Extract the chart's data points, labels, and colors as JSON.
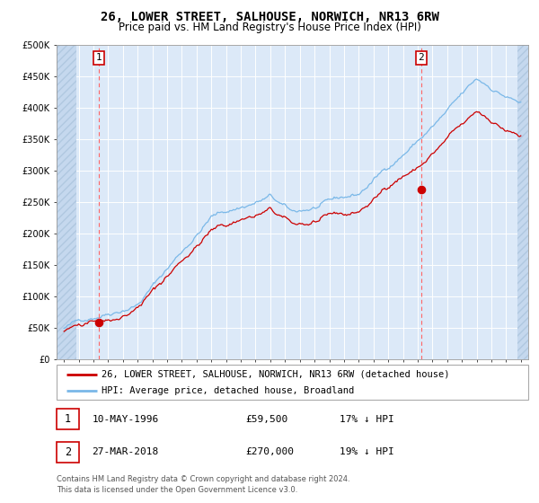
{
  "title": "26, LOWER STREET, SALHOUSE, NORWICH, NR13 6RW",
  "subtitle": "Price paid vs. HM Land Registry's House Price Index (HPI)",
  "ylim": [
    0,
    500000
  ],
  "yticks": [
    0,
    50000,
    100000,
    150000,
    200000,
    250000,
    300000,
    350000,
    400000,
    450000,
    500000
  ],
  "ytick_labels": [
    "£0",
    "£50K",
    "£100K",
    "£150K",
    "£200K",
    "£250K",
    "£300K",
    "£350K",
    "£400K",
    "£450K",
    "£500K"
  ],
  "xlim_start": 1993.5,
  "xlim_end": 2025.5,
  "background_color": "#ffffff",
  "plot_bg_color": "#dce9f8",
  "grid_color": "#ffffff",
  "hpi_color": "#7ab8e8",
  "price_color": "#cc0000",
  "vline_color": "#ff6666",
  "point1_x": 1996.36,
  "point1_y": 59500,
  "point2_x": 2018.24,
  "point2_y": 270000,
  "point_color": "#cc0000",
  "legend_label1": "26, LOWER STREET, SALHOUSE, NORWICH, NR13 6RW (detached house)",
  "legend_label2": "HPI: Average price, detached house, Broadland",
  "annot1_label": "1",
  "annot2_label": "2",
  "annot1_date": "10-MAY-1996",
  "annot1_price": "£59,500",
  "annot1_hpi": "17% ↓ HPI",
  "annot2_date": "27-MAR-2018",
  "annot2_price": "£270,000",
  "annot2_hpi": "19% ↓ HPI",
  "footer": "Contains HM Land Registry data © Crown copyright and database right 2024.\nThis data is licensed under the Open Government Licence v3.0.",
  "title_fontsize": 10,
  "subtitle_fontsize": 8.5,
  "tick_fontsize": 7,
  "legend_fontsize": 7.5,
  "annot_fontsize": 8,
  "footer_fontsize": 6
}
